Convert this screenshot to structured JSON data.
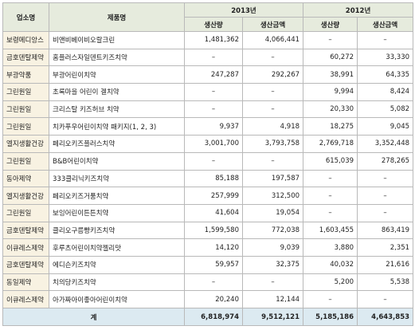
{
  "table": {
    "header_top": [
      "업소명",
      "제품명",
      "2013년",
      "2012년"
    ],
    "header_sub": [
      "생산량",
      "생산금액",
      "생산량",
      "생산금액"
    ],
    "rows": [
      [
        "보령메디앙스",
        "비앤비베이비오랄크린",
        "1,481,362",
        "4,066,441",
        "–",
        "–"
      ],
      [
        "금호덴탈제약",
        "홈플러스자일덴트키즈치약",
        "–",
        "–",
        "60,272",
        "33,330"
      ],
      [
        "부광약품",
        "부광어린이치약",
        "247,287",
        "292,267",
        "38,991",
        "64,335"
      ],
      [
        "그린원일",
        "초록마을 어린이 겔치약",
        "–",
        "–",
        "9,994",
        "8,424"
      ],
      [
        "그린원일",
        "크리스탈 키즈허브 치약",
        "–",
        "–",
        "20,330",
        "5,082"
      ],
      [
        "그린원일",
        "치카푸우어린이치약 패키지(1, 2, 3)",
        "9,937",
        "4,918",
        "18,275",
        "9,045"
      ],
      [
        "엘지생활건강",
        "페리오키즈플러스치약",
        "3,001,700",
        "3,793,758",
        "2,769,718",
        "3,352,448"
      ],
      [
        "그린원일",
        "B&B어린이치약",
        "–",
        "–",
        "615,039",
        "278,265"
      ],
      [
        "동아제약",
        "333클리닉키즈치약",
        "85,188",
        "197,587",
        "–",
        "–"
      ],
      [
        "엘지생활건강",
        "페리오키즈거품치약",
        "257,999",
        "312,500",
        "–",
        "–"
      ],
      [
        "그린원일",
        "보잉어린이튼튼치약",
        "41,604",
        "19,054",
        "–",
        "–"
      ],
      [
        "금호덴탈제약",
        "클리오구름빵키즈치약",
        "1,599,580",
        "772,038",
        "1,603,455",
        "863,419"
      ],
      [
        "이큐레스제약",
        "후루츠어린이치약젤리맛",
        "14,120",
        "9,039",
        "3,880",
        "2,351"
      ],
      [
        "금호덴탈제약",
        "에디슨키즈치약",
        "59,957",
        "32,375",
        "40,032",
        "21,616"
      ],
      [
        "동일제약",
        "치의당키즈치약",
        "–",
        "–",
        "5,200",
        "5,538"
      ],
      [
        "이큐레스제약",
        "아가짜아이좋아어린이치약",
        "20,240",
        "12,144",
        "–",
        "–"
      ]
    ],
    "total": {
      "label": "계",
      "values": [
        "6,818,974",
        "9,512,121",
        "5,185,186",
        "4,643,853"
      ]
    }
  }
}
